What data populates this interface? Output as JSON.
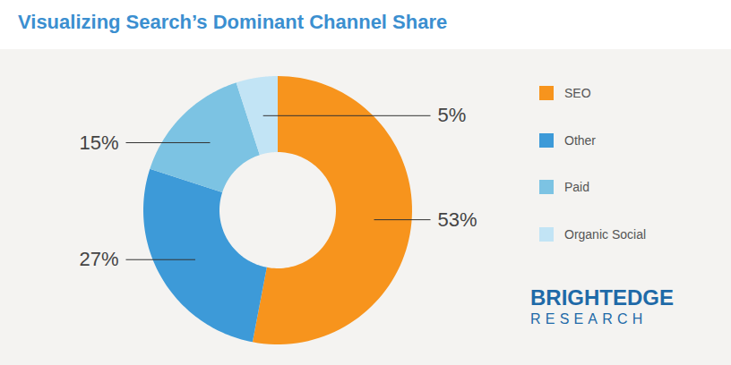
{
  "chart_data": {
    "type": "pie",
    "title": "Visualizing Search’s Dominant Channel Share",
    "categories": [
      "SEO",
      "Other",
      "Paid",
      "Organic Social"
    ],
    "values": [
      53,
      27,
      15,
      5
    ],
    "value_labels": [
      "53%",
      "27%",
      "15%",
      "5%"
    ],
    "colors": [
      "#f7941d",
      "#3d9ad8",
      "#7cc3e3",
      "#c2e4f5"
    ],
    "data_labels": true,
    "legend": "right",
    "tick_labels": false,
    "annotations": [
      "BRIGHTEDGE",
      "RESEARCH"
    ]
  }
}
